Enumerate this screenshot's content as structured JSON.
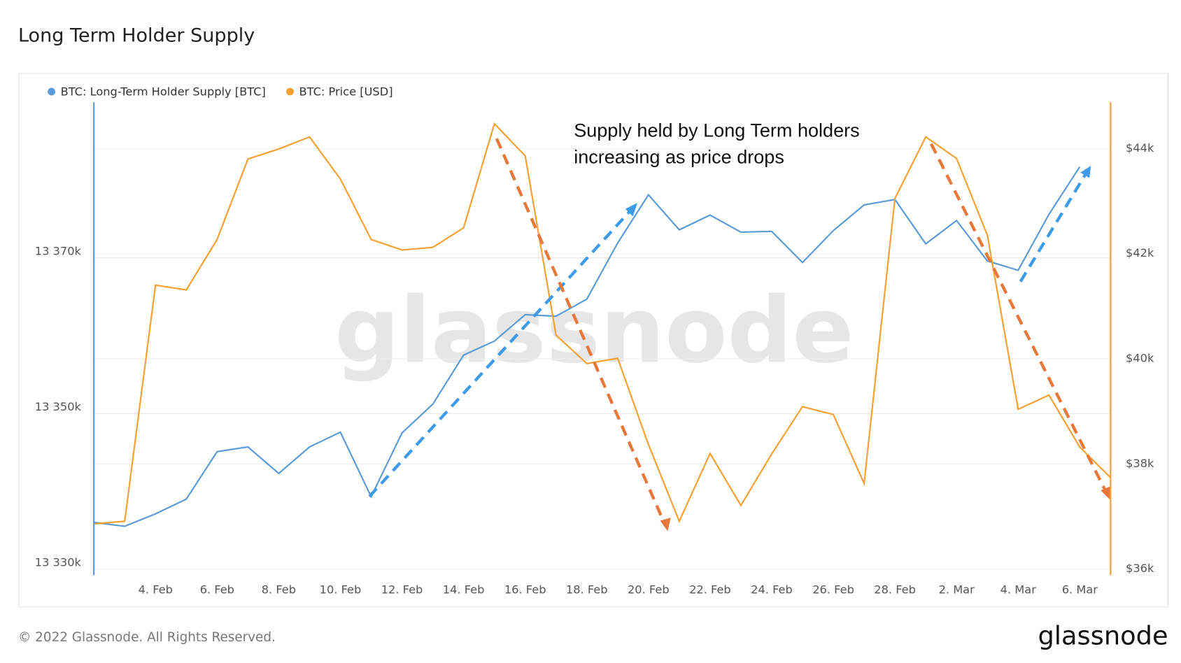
{
  "chart_data": {
    "type": "line",
    "title": "Long Term Holder Supply",
    "categories": [
      null,
      null,
      "4. Feb",
      null,
      "6. Feb",
      null,
      "8. Feb",
      null,
      "10. Feb",
      null,
      "12. Feb",
      null,
      "14. Feb",
      null,
      "16. Feb",
      null,
      "18. Feb",
      null,
      "20. Feb",
      null,
      "22. Feb",
      null,
      "24. Feb",
      null,
      "26. Feb",
      null,
      "28. Feb",
      null,
      "2. Mar",
      null,
      "4. Mar",
      null,
      "6. Mar",
      null
    ],
    "series": [
      {
        "name": "BTC: Long-Term Holder Supply [BTC]",
        "color": "#5b9bd5",
        "axis": "y",
        "values": [
          13336000,
          13335500,
          13337100,
          13339000,
          13345100,
          13345700,
          13342300,
          13345700,
          13347600,
          13339300,
          13347500,
          13351200,
          13357500,
          13359300,
          13362700,
          13362500,
          13364700,
          13371900,
          13378100,
          13373600,
          13375500,
          13373300,
          13373400,
          13369400,
          13373500,
          13376800,
          13377500,
          13371800,
          13374800,
          13369600,
          13368400,
          13375600,
          13381700,
          null
        ]
      },
      {
        "name": "BTC: Price [USD]",
        "color": "#f5a031",
        "axis": "y2",
        "values": [
          36860,
          36910,
          41400,
          41310,
          42270,
          43800,
          43990,
          44220,
          43420,
          42270,
          42070,
          42120,
          42490,
          44470,
          43860,
          40450,
          39910,
          40010,
          38370,
          36910,
          38200,
          37210,
          38190,
          39090,
          38940,
          37630,
          43050,
          44220,
          43810,
          42350,
          39040,
          39310,
          38320,
          37740
        ]
      }
    ],
    "ylim": [
      13330000,
      13390000
    ],
    "yticks": [
      {
        "value": 13330000,
        "label": "13 330k"
      },
      {
        "value": 13350000,
        "label": "13 350k"
      },
      {
        "value": 13370000,
        "label": "13 370k"
      }
    ],
    "y2lim": [
      36000,
      44880
    ],
    "y2ticks": [
      {
        "value": 36000,
        "label": "$36k"
      },
      {
        "value": 38000,
        "label": "$38k"
      },
      {
        "value": 40000,
        "label": "$40k"
      },
      {
        "value": 42000,
        "label": "$42k"
      },
      {
        "value": 44000,
        "label": "$44k"
      }
    ],
    "grid": true,
    "legend": "top-left",
    "annotation": [
      "Supply held by Long Term holders",
      "increasing as price drops"
    ],
    "watermark": "glassnode",
    "footer": "© 2022 Glassnode. All Rights Reserved.",
    "logo": "glassnode"
  }
}
